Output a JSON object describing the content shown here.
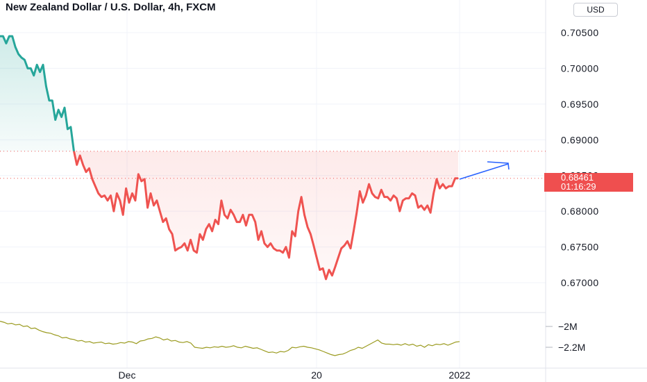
{
  "header": {
    "title": "New Zealand Dollar / U.S. Dollar, 4h, FXCM",
    "currency_button": "USD"
  },
  "last_price_badge": {
    "price": "0.68461",
    "countdown": "01:16:29",
    "color": "#ef4f4f"
  },
  "colors": {
    "up_line": "#26a69a",
    "down_line": "#ef5350",
    "volume_line": "#9a9a1e",
    "arrow": "#2962ff",
    "text": "#131722"
  },
  "chart_data": [
    {
      "type": "area",
      "title": "New Zealand Dollar / U.S. Dollar, 4h, FXCM",
      "y_tick_labels": [
        "0.70500",
        "0.70000",
        "0.69500",
        "0.69000",
        "0.68500",
        "0.68000",
        "0.67500",
        "0.67000"
      ],
      "x_tick_labels": [
        "Dec",
        "20",
        "2022"
      ],
      "ylim": [
        0.6675,
        0.7074
      ],
      "baseline_value": 0.6884,
      "last_value": 0.68461,
      "grid": true,
      "series": [
        {
          "values": [
            0.7045,
            0.7045,
            0.7035,
            0.7045,
            0.7045,
            0.703,
            0.702,
            0.7015,
            0.7012,
            0.7,
            0.7,
            0.699,
            0.7005,
            0.6995,
            0.7005,
            0.6975,
            0.6955,
            0.6955,
            0.6928,
            0.6942,
            0.6932,
            0.6945,
            0.6915,
            0.6918,
            0.6885,
            0.6865,
            0.6878,
            0.6865,
            0.6855,
            0.686,
            0.6845,
            0.6835,
            0.6825,
            0.682,
            0.6822,
            0.6815,
            0.6822,
            0.68,
            0.6825,
            0.6815,
            0.6795,
            0.6832,
            0.6812,
            0.6825,
            0.6815,
            0.6852,
            0.6842,
            0.6845,
            0.6805,
            0.6825,
            0.6808,
            0.6815,
            0.68,
            0.6785,
            0.679,
            0.6775,
            0.6768,
            0.6745,
            0.6748,
            0.675,
            0.6755,
            0.6745,
            0.676,
            0.6745,
            0.6742,
            0.6768,
            0.676,
            0.6775,
            0.6782,
            0.6772,
            0.6788,
            0.6782,
            0.6815,
            0.6795,
            0.679,
            0.6802,
            0.6795,
            0.6785,
            0.6785,
            0.6795,
            0.678,
            0.6795,
            0.6795,
            0.6785,
            0.676,
            0.6772,
            0.6755,
            0.675,
            0.6755,
            0.6748,
            0.6745,
            0.6745,
            0.6742,
            0.675,
            0.6735,
            0.6772,
            0.6765,
            0.68,
            0.682,
            0.6795,
            0.6778,
            0.6768,
            0.6752,
            0.6735,
            0.6718,
            0.672,
            0.6705,
            0.6718,
            0.671,
            0.6722,
            0.6735,
            0.6748,
            0.6752,
            0.6758,
            0.6748,
            0.6772,
            0.6798,
            0.6828,
            0.6812,
            0.6822,
            0.6838,
            0.6825,
            0.682,
            0.6818,
            0.683,
            0.682,
            0.682,
            0.6815,
            0.6822,
            0.6818,
            0.68,
            0.6815,
            0.6818,
            0.6818,
            0.6825,
            0.6822,
            0.6805,
            0.6808,
            0.6802,
            0.6808,
            0.6798,
            0.6825,
            0.6845,
            0.6832,
            0.6838,
            0.6832,
            0.6835,
            0.6835,
            0.6846,
            0.6846
          ]
        }
      ]
    },
    {
      "type": "line",
      "y_tick_labels": [
        "−2M",
        "−2.2M"
      ],
      "ylim": [
        -2.42,
        -1.93
      ],
      "series": [
        {
          "values": [
            -1.95,
            -1.96,
            -1.975,
            -1.97,
            -1.985,
            -1.98,
            -2.0,
            -1.995,
            -2.02,
            -2.015,
            -2.035,
            -2.05,
            -2.06,
            -2.065,
            -2.08,
            -2.09,
            -2.11,
            -2.105,
            -2.12,
            -2.125,
            -2.14,
            -2.135,
            -2.15,
            -2.145,
            -2.16,
            -2.155,
            -2.15,
            -2.165,
            -2.16,
            -2.17,
            -2.165,
            -2.155,
            -2.16,
            -2.145,
            -2.15,
            -2.165,
            -2.14,
            -2.135,
            -2.12,
            -2.115,
            -2.1,
            -2.11,
            -2.13,
            -2.12,
            -2.14,
            -2.135,
            -2.15,
            -2.155,
            -2.145,
            -2.16,
            -2.2,
            -2.205,
            -2.21,
            -2.2,
            -2.205,
            -2.195,
            -2.2,
            -2.19,
            -2.2,
            -2.195,
            -2.185,
            -2.2,
            -2.205,
            -2.19,
            -2.2,
            -2.21,
            -2.205,
            -2.22,
            -2.235,
            -2.25,
            -2.245,
            -2.255,
            -2.24,
            -2.245,
            -2.23,
            -2.2,
            -2.205,
            -2.195,
            -2.19,
            -2.2,
            -2.205,
            -2.215,
            -2.225,
            -2.24,
            -2.255,
            -2.27,
            -2.28,
            -2.27,
            -2.265,
            -2.25,
            -2.23,
            -2.22,
            -2.2,
            -2.21,
            -2.19,
            -2.17,
            -2.15,
            -2.13,
            -2.16,
            -2.17,
            -2.17,
            -2.175,
            -2.17,
            -2.18,
            -2.165,
            -2.18,
            -2.17,
            -2.19,
            -2.18,
            -2.2,
            -2.175,
            -2.185,
            -2.17,
            -2.175,
            -2.165,
            -2.18,
            -2.165,
            -2.15,
            -2.145
          ]
        }
      ]
    }
  ]
}
